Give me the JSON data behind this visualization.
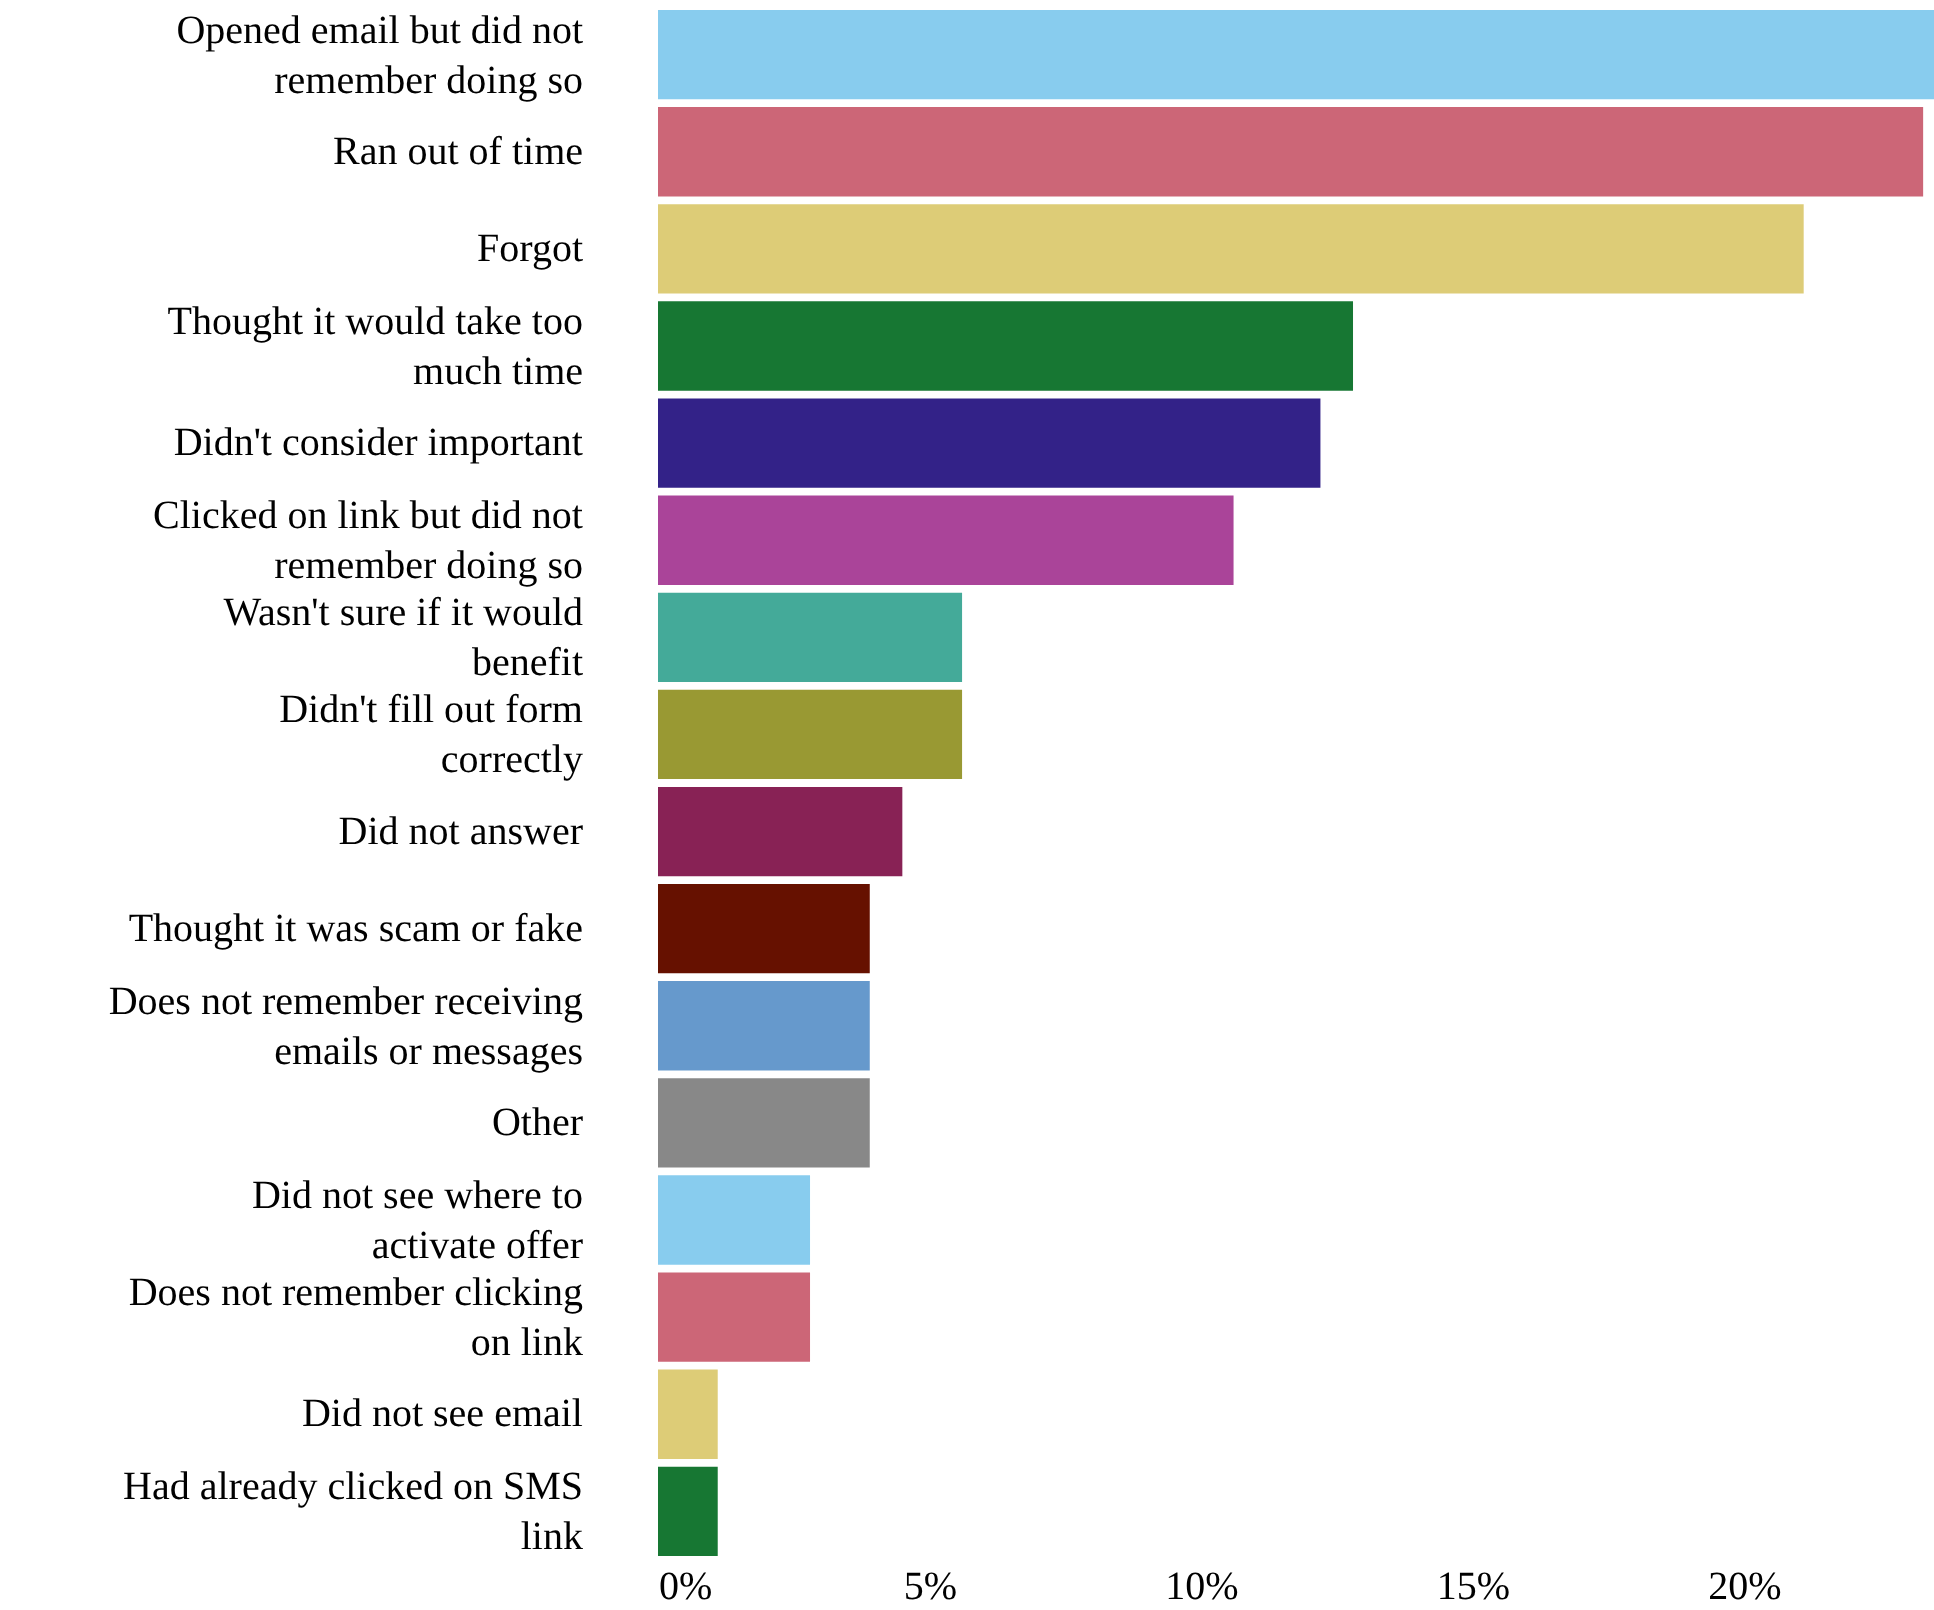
{
  "chart_data": {
    "type": "bar",
    "orientation": "horizontal",
    "categories": [
      "Opened email but did not\nremember doing so",
      "Ran out of time",
      "Forgot",
      "Thought it would take too\nmuch time",
      "Didn't consider important",
      "Clicked on link but did not\nremember doing so",
      "Wasn't sure if it would\nbenefit",
      "Didn't fill out form\ncorrectly",
      "Did not answer",
      "Thought it was scam or fake",
      "Does not remember receiving\nemails or messages",
      "Other",
      "Did not see where to\nactivate offer",
      "Does not remember clicking\non link",
      "Did not see email",
      "Had already clicked on SMS\nlink"
    ],
    "values": [
      23.5,
      23.3,
      21.1,
      12.8,
      12.2,
      10.6,
      5.6,
      5.6,
      4.5,
      3.9,
      3.9,
      3.9,
      2.8,
      2.8,
      1.1,
      1.1
    ],
    "colors": [
      "#88ccee",
      "#cc6677",
      "#ddcc77",
      "#177733",
      "#332288",
      "#aa4499",
      "#44aa99",
      "#999933",
      "#882255",
      "#661100",
      "#6699cc",
      "#888888",
      "#88ccee",
      "#cc6677",
      "#ddcc77",
      "#177733"
    ],
    "xlim": [
      0,
      23.5
    ],
    "xticks": [
      {
        "value": 0,
        "label": "0%"
      },
      {
        "value": 5,
        "label": "5%"
      },
      {
        "value": 10,
        "label": "10%"
      },
      {
        "value": 15,
        "label": "15%"
      },
      {
        "value": 20,
        "label": "20%"
      }
    ],
    "grid": false
  }
}
